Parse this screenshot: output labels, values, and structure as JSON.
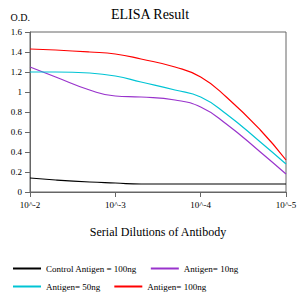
{
  "chart_data": {
    "type": "line",
    "title": "ELISA Result",
    "y_label": "O.D.",
    "x_label": "Serial Dilutions of Antibody",
    "log": "x",
    "grid": false,
    "legend": "bottom",
    "x": [
      0.01,
      0.005,
      0.002,
      0.001,
      0.0005,
      0.0002,
      0.0001,
      5e-05,
      2e-05,
      1e-05
    ],
    "xlim": [
      0.01,
      1e-05
    ],
    "xticks": [
      {
        "value": 0.01,
        "label": "10^-2"
      },
      {
        "value": 0.001,
        "label": "10^-3"
      },
      {
        "value": 0.0001,
        "label": "10^-4"
      },
      {
        "value": 1e-05,
        "label": "10^-5"
      }
    ],
    "ylim": [
      0,
      1.6
    ],
    "yticks": [
      0,
      0.2,
      0.4,
      0.6,
      0.8,
      1,
      1.2,
      1.4,
      1.6
    ],
    "series": [
      {
        "name": "Control Antigen = 100ng",
        "color": "#000000",
        "values": [
          0.14,
          0.12,
          0.1,
          0.09,
          0.08,
          0.08,
          0.08,
          0.08,
          0.08,
          0.08
        ]
      },
      {
        "name": "Antigen= 10ng",
        "color": "#9933cc",
        "values": [
          1.25,
          1.15,
          1.02,
          0.96,
          0.95,
          0.92,
          0.85,
          0.68,
          0.4,
          0.18
        ]
      },
      {
        "name": "Antigen= 50ng",
        "color": "#00c4d4",
        "values": [
          1.2,
          1.2,
          1.19,
          1.16,
          1.1,
          1.02,
          0.95,
          0.78,
          0.5,
          0.28
        ]
      },
      {
        "name": "Antigen= 100ng",
        "color": "#ff0000",
        "values": [
          1.43,
          1.42,
          1.4,
          1.38,
          1.33,
          1.25,
          1.15,
          0.95,
          0.62,
          0.32
        ]
      }
    ]
  }
}
